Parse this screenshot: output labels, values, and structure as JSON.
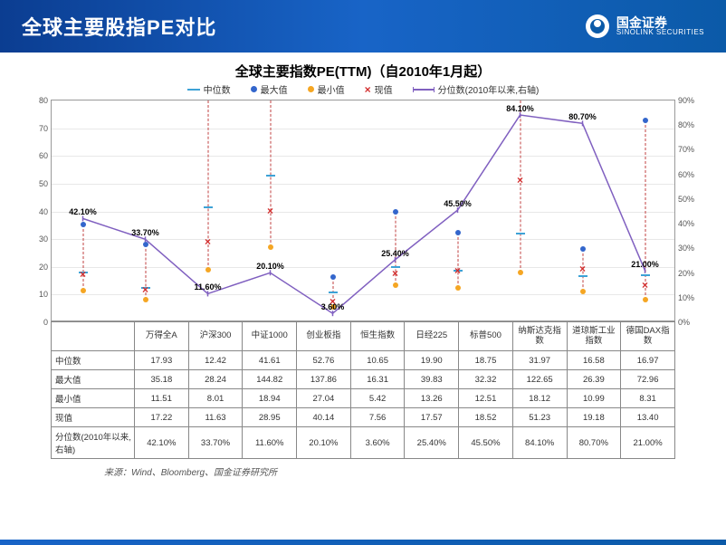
{
  "header": {
    "title": "全球主要股指PE对比",
    "brand_cn": "国金证券",
    "brand_en": "SINOLINK SECURITIES"
  },
  "chart": {
    "title": "全球主要指数PE(TTM)（自2010年1月起）",
    "legend": {
      "median": "中位数",
      "max": "最大值",
      "min": "最小值",
      "current": "现值",
      "percentile": "分位数(2010年以来,右轴)"
    },
    "colors": {
      "median": "#3da2d6",
      "max": "#3366cc",
      "min": "#f5a623",
      "current": "#d32f2f",
      "percentile_line": "#8060c0",
      "dashed": "#c04040",
      "grid": "#e8e8e8",
      "border": "#888888",
      "bg": "#ffffff"
    },
    "left_axis": {
      "min": 0,
      "max": 80,
      "step": 10
    },
    "right_axis": {
      "min": 0,
      "max": 90,
      "step": 10,
      "suffix": "%"
    },
    "categories": [
      "万得全A",
      "沪深300",
      "中证1000",
      "创业板指",
      "恒生指数",
      "日经225",
      "标普500",
      "纳斯达克指数",
      "道琼斯工业指数",
      "德国DAX指数"
    ],
    "rows": {
      "median_label": "中位数",
      "max_label": "最大值",
      "min_label": "最小值",
      "current_label": "现值",
      "percentile_label": "分位数(2010年以来,右轴)"
    },
    "data": {
      "median": [
        17.93,
        12.42,
        41.61,
        52.76,
        10.65,
        19.9,
        18.75,
        31.97,
        16.58,
        16.97
      ],
      "max": [
        35.18,
        28.24,
        144.82,
        137.86,
        16.31,
        39.83,
        32.32,
        122.65,
        26.39,
        72.96
      ],
      "min": [
        11.51,
        8.01,
        18.94,
        27.04,
        5.42,
        13.26,
        12.51,
        18.12,
        10.99,
        8.31
      ],
      "current": [
        17.22,
        11.63,
        28.95,
        40.14,
        7.56,
        17.57,
        18.52,
        51.23,
        19.18,
        13.4
      ],
      "percentile": [
        42.1,
        33.7,
        11.6,
        20.1,
        3.6,
        25.4,
        45.5,
        84.1,
        80.7,
        21.0
      ]
    },
    "percentile_labels": [
      "42.10%",
      "33.70%",
      "11.60%",
      "20.10%",
      "3.60%",
      "25.40%",
      "45.50%",
      "84.10%",
      "80.70%",
      "21.00%"
    ]
  },
  "source": "来源：Wind、Bloomberg、国金证券研究所"
}
